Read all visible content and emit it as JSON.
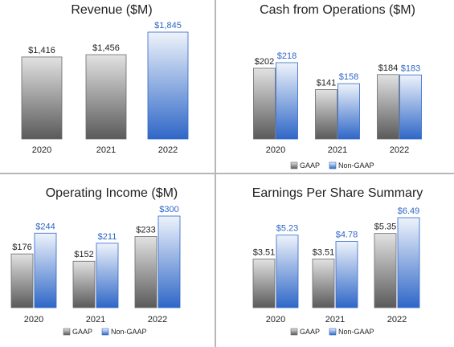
{
  "colors": {
    "gaap_top": "#e2e2e2",
    "gaap_bottom": "#5a5a5a",
    "ng_top": "#eef3fb",
    "ng_bottom": "#2f67c7",
    "ng_label": "#2f67c7",
    "border": "#6a6a6a"
  },
  "chart_data": [
    {
      "type": "bar",
      "title": "Revenue ($M)",
      "categories": [
        "2020",
        "2021",
        "2022"
      ],
      "series": [
        {
          "values": [
            1416,
            1456,
            1845
          ],
          "labels": [
            "$1,416",
            "$1,456",
            "$1,845"
          ],
          "styles": [
            "gaap",
            "gaap",
            "nongaap"
          ]
        }
      ],
      "ylim": [
        0,
        1845
      ]
    },
    {
      "type": "bar",
      "title": "Cash from Operations ($M)",
      "categories": [
        "2020",
        "2021",
        "2022"
      ],
      "series": [
        {
          "name": "GAAP",
          "values": [
            202,
            141,
            184
          ],
          "labels": [
            "$202",
            "$141",
            "$184"
          ]
        },
        {
          "name": "Non-GAAP",
          "values": [
            218,
            158,
            183
          ],
          "labels": [
            "$218",
            "$158",
            "$183"
          ]
        }
      ],
      "legend": "bottom",
      "ylim": [
        0,
        218
      ]
    },
    {
      "type": "bar",
      "title": "Operating Income ($M)",
      "categories": [
        "2020",
        "2021",
        "2022"
      ],
      "series": [
        {
          "name": "GAAP",
          "values": [
            176,
            152,
            233
          ],
          "labels": [
            "$176",
            "$152",
            "$233"
          ]
        },
        {
          "name": "Non-GAAP",
          "values": [
            244,
            211,
            300
          ],
          "labels": [
            "$244",
            "$211",
            "$300"
          ]
        }
      ],
      "legend": "bottom",
      "ylim": [
        0,
        300
      ]
    },
    {
      "type": "bar",
      "title": "Earnings Per Share Summary",
      "categories": [
        "2020",
        "2021",
        "2022"
      ],
      "series": [
        {
          "name": "GAAP",
          "values": [
            3.51,
            3.51,
            5.35
          ],
          "labels": [
            "$3.51",
            "$3.51",
            "$5.35"
          ]
        },
        {
          "name": "Non-GAAP",
          "values": [
            5.23,
            4.78,
            6.49
          ],
          "labels": [
            "$5.23",
            "$4.78",
            "$6.49"
          ]
        }
      ],
      "legend": "bottom",
      "ylim": [
        0,
        6.49
      ]
    }
  ]
}
